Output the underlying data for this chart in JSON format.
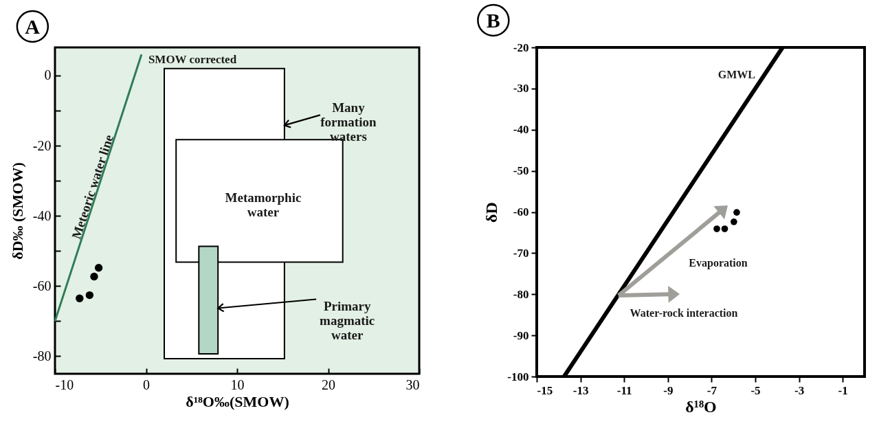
{
  "chart_data": [
    {
      "type": "scatter",
      "title": "A",
      "xlabel": "δ¹⁸O‰(SMOW)",
      "ylabel": "δD‰ (SMOW)",
      "xlim": [
        -10,
        30
      ],
      "ylim": [
        -85,
        8
      ],
      "xticks": [
        -10,
        0,
        10,
        20,
        30
      ],
      "yticks": [
        -80,
        {
          "value": -70,
          "label": null
        },
        -60,
        {
          "value": -50,
          "label": null
        },
        -40,
        {
          "value": -30,
          "label": null
        },
        -20,
        {
          "value": -10,
          "label": null
        },
        0
      ],
      "grid": false,
      "series": [
        {
          "type": "line",
          "color": "#2e7d57",
          "x": [
            -10,
            -0.5
          ],
          "values": [
            -70,
            6
          ]
        },
        {
          "type": "line",
          "color": "#ffffff",
          "x": [
            2,
            15.2
          ],
          "values": [
            null,
            null
          ],
          "lower": [
            -80.7,
            -80.7
          ],
          "upper": [
            2,
            2
          ]
        },
        {
          "type": "line",
          "color": "#ffffff",
          "x": [
            3.3,
            21.6
          ],
          "values": [
            null,
            null
          ],
          "lower": [
            -53.2,
            -53.2
          ],
          "upper": [
            -18.3,
            -18.3
          ]
        },
        {
          "type": "line",
          "color": "#b3d6c5",
          "x": [
            5.8,
            7.9
          ],
          "values": [
            null,
            null
          ],
          "lower": [
            -79.3,
            -79.3
          ],
          "upper": [
            -48.7,
            -48.7
          ]
        },
        {
          "color": "#000000",
          "marker": "circle",
          "x": [
            -7.3,
            -6.2,
            -5.7,
            -5.2
          ],
          "values": [
            -63.5,
            -62.6,
            -57.3,
            -54.8
          ]
        }
      ],
      "annotations": [
        {
          "text": "SMOW corrected",
          "x": -0.5,
          "y": 6
        },
        {
          "text": "Meteoric water line",
          "x": -5,
          "y": -30
        },
        {
          "text": "Many formation waters",
          "x": 15.2,
          "y": -14.2
        },
        "Metamorphic water",
        {
          "text": "Primary magmatic water",
          "x": 7.9,
          "y": -66.3
        }
      ]
    },
    {
      "type": "scatter",
      "title": "B",
      "xlabel": "δ¹⁸O",
      "ylabel": "δD",
      "xlim": [
        -15,
        0
      ],
      "ylim": [
        -100,
        -20
      ],
      "xticks": [
        -15,
        -13,
        -11,
        -9,
        -7,
        -5,
        -3,
        -1
      ],
      "yticks": [
        -100,
        -90,
        -80,
        -70,
        -60,
        -50,
        -40,
        -30,
        -20
      ],
      "grid": false,
      "series": [
        {
          "type": "line",
          "color": "#000000",
          "x": [
            -13.75,
            -3.75
          ],
          "values": [
            -100,
            -20
          ]
        },
        {
          "color": "#000000",
          "marker": "circle",
          "x": [
            -6.76,
            -6.4,
            -5.98,
            -5.85
          ],
          "values": [
            -64.1,
            -64.1,
            -62.4,
            -60.1
          ]
        }
      ],
      "annotations": [
        {
          "text": "GMWL",
          "x": -4.5,
          "y": -26
        },
        "Evaporation",
        "Water-rock interaction"
      ]
    }
  ]
}
